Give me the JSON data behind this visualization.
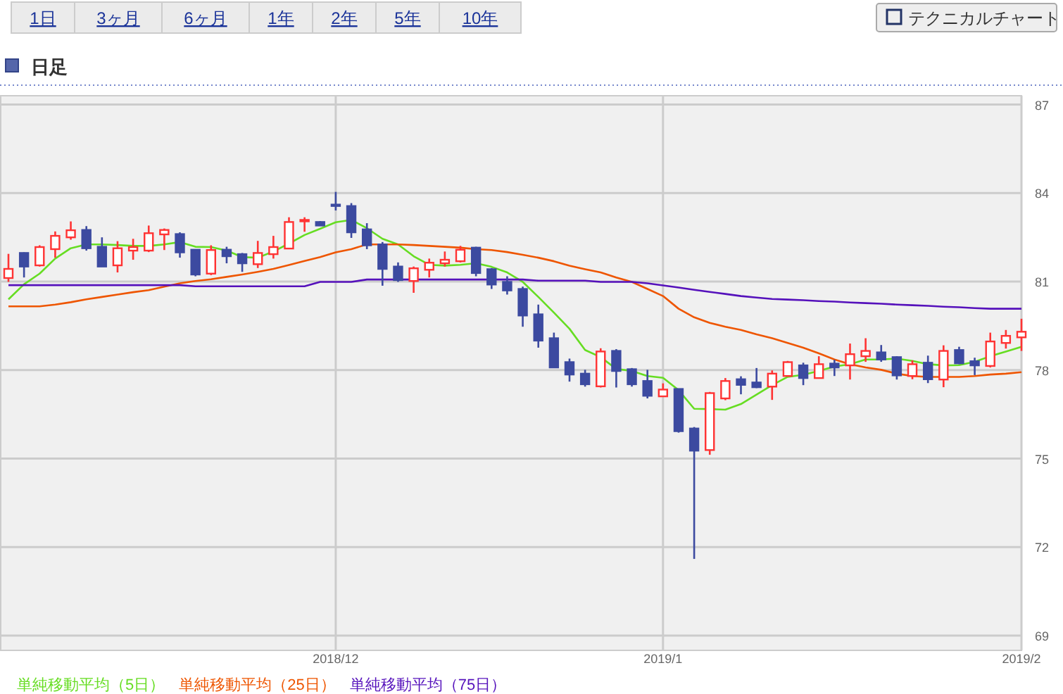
{
  "chart_data": {
    "type": "candlestick",
    "title": "日足",
    "annotations": [
      "1日",
      "3ヶ月",
      "6ヶ月",
      "1年",
      "2年",
      "5年",
      "10年",
      "テクニカルチャート"
    ],
    "categories": [
      null,
      null,
      null,
      null,
      null,
      null,
      null,
      null,
      null,
      null,
      null,
      null,
      null,
      null,
      null,
      null,
      null,
      null,
      null,
      null,
      null,
      "2018/12",
      null,
      null,
      null,
      null,
      null,
      null,
      null,
      null,
      null,
      null,
      null,
      null,
      null,
      null,
      null,
      null,
      null,
      null,
      null,
      null,
      "2019/1",
      null,
      null,
      null,
      null,
      null,
      null,
      null,
      null,
      null,
      null,
      null,
      null,
      null,
      null,
      null,
      null,
      null,
      null,
      null,
      null,
      null,
      null,
      "2019/2"
    ],
    "ohlc": [
      [
        81.12,
        81.94,
        80.99,
        81.43
      ],
      [
        81.97,
        81.99,
        81.14,
        81.51
      ],
      [
        81.55,
        82.23,
        81.51,
        82.17
      ],
      [
        82.1,
        82.7,
        81.81,
        82.55
      ],
      [
        82.5,
        83.04,
        82.42,
        82.74
      ],
      [
        82.75,
        82.88,
        82.05,
        82.13
      ],
      [
        82.18,
        82.5,
        81.51,
        81.51
      ],
      [
        81.55,
        82.37,
        81.31,
        82.13
      ],
      [
        82.05,
        82.45,
        81.74,
        82.17
      ],
      [
        82.05,
        82.9,
        82.0,
        82.64
      ],
      [
        82.6,
        82.8,
        82.07,
        82.75
      ],
      [
        82.61,
        82.67,
        81.81,
        81.99
      ],
      [
        82.08,
        82.08,
        81.18,
        81.24
      ],
      [
        81.27,
        82.23,
        81.22,
        82.07
      ],
      [
        82.08,
        82.18,
        81.62,
        81.86
      ],
      [
        81.93,
        81.97,
        81.33,
        81.62
      ],
      [
        81.59,
        82.38,
        81.46,
        81.97
      ],
      [
        81.93,
        82.55,
        81.78,
        82.17
      ],
      [
        82.12,
        83.18,
        82.12,
        83.02
      ],
      [
        83.05,
        83.18,
        82.69,
        83.09
      ],
      [
        83.02,
        83.05,
        82.9,
        82.9
      ],
      [
        83.61,
        84.04,
        83.41,
        83.61
      ],
      [
        83.56,
        83.66,
        82.48,
        82.67
      ],
      [
        82.77,
        82.98,
        82.1,
        82.23
      ],
      [
        82.26,
        82.34,
        80.86,
        81.43
      ],
      [
        81.51,
        81.65,
        80.99,
        81.05
      ],
      [
        81.02,
        81.51,
        80.62,
        81.45
      ],
      [
        81.4,
        81.78,
        81.14,
        81.64
      ],
      [
        81.62,
        82.02,
        81.51,
        81.74
      ],
      [
        81.69,
        82.21,
        81.65,
        82.08
      ],
      [
        82.15,
        82.18,
        81.18,
        81.29
      ],
      [
        81.42,
        81.46,
        80.75,
        80.9
      ],
      [
        80.99,
        81.18,
        80.56,
        80.7
      ],
      [
        80.75,
        80.83,
        79.47,
        79.85
      ],
      [
        79.89,
        80.22,
        78.76,
        79.0
      ],
      [
        79.08,
        79.27,
        78.09,
        78.09
      ],
      [
        78.27,
        78.39,
        77.61,
        77.85
      ],
      [
        77.88,
        78.01,
        77.44,
        77.52
      ],
      [
        77.45,
        78.74,
        77.41,
        78.63
      ],
      [
        78.65,
        78.71,
        77.41,
        77.97
      ],
      [
        78.03,
        78.07,
        77.44,
        77.52
      ],
      [
        77.63,
        78.01,
        77.04,
        77.13
      ],
      [
        77.11,
        77.55,
        77.11,
        77.34
      ],
      [
        77.36,
        77.36,
        75.88,
        75.93
      ],
      [
        76.02,
        76.07,
        71.6,
        75.27
      ],
      [
        75.29,
        77.26,
        75.13,
        77.22
      ],
      [
        77.04,
        77.73,
        76.98,
        77.63
      ],
      [
        77.69,
        77.79,
        77.18,
        77.5
      ],
      [
        77.58,
        78.07,
        77.39,
        77.42
      ],
      [
        77.44,
        77.99,
        76.99,
        77.88
      ],
      [
        77.8,
        78.31,
        77.8,
        78.27
      ],
      [
        78.16,
        78.25,
        77.49,
        77.73
      ],
      [
        77.73,
        78.47,
        77.73,
        78.2
      ],
      [
        78.22,
        78.35,
        77.8,
        78.09
      ],
      [
        78.16,
        78.9,
        77.68,
        78.54
      ],
      [
        78.47,
        79.08,
        78.28,
        78.65
      ],
      [
        78.6,
        78.85,
        78.28,
        78.36
      ],
      [
        78.44,
        78.47,
        77.68,
        77.82
      ],
      [
        77.8,
        78.33,
        77.69,
        78.2
      ],
      [
        78.25,
        78.49,
        77.56,
        77.69
      ],
      [
        77.68,
        78.84,
        77.42,
        78.65
      ],
      [
        78.68,
        78.79,
        78.2,
        78.23
      ],
      [
        78.3,
        78.42,
        77.83,
        78.16
      ],
      [
        78.14,
        79.27,
        78.09,
        78.97
      ],
      [
        78.92,
        79.36,
        78.73,
        79.16
      ],
      [
        79.11,
        79.74,
        78.65,
        79.3
      ]
    ],
    "colors": [
      "#ff3333",
      "#3c4aa0",
      "#ff3333",
      "#ff3333",
      "#ff3333",
      "#3c4aa0",
      "#3c4aa0",
      "#ff3333",
      "#ff3333",
      "#ff3333",
      "#ff3333",
      "#3c4aa0",
      "#3c4aa0",
      "#ff3333",
      "#3c4aa0",
      "#3c4aa0",
      "#ff3333",
      "#ff3333",
      "#ff3333",
      "#ff3333",
      "#3c4aa0",
      "#3c4aa0",
      "#3c4aa0",
      "#3c4aa0",
      "#3c4aa0",
      "#3c4aa0",
      "#ff3333",
      "#ff3333",
      "#ff3333",
      "#ff3333",
      "#3c4aa0",
      "#3c4aa0",
      "#3c4aa0",
      "#3c4aa0",
      "#3c4aa0",
      "#3c4aa0",
      "#3c4aa0",
      "#3c4aa0",
      "#ff3333",
      "#3c4aa0",
      "#3c4aa0",
      "#3c4aa0",
      "#ff3333",
      "#3c4aa0",
      "#3c4aa0",
      "#ff3333",
      "#ff3333",
      "#3c4aa0",
      "#3c4aa0",
      "#ff3333",
      "#ff3333",
      "#3c4aa0",
      "#ff3333",
      "#3c4aa0",
      "#ff3333",
      "#ff3333",
      "#3c4aa0",
      "#3c4aa0",
      "#ff3333",
      "#3c4aa0",
      "#ff3333",
      "#3c4aa0",
      "#3c4aa0",
      "#ff3333",
      "#ff3333",
      "#ff3333"
    ],
    "series": [
      {
        "name": "単純移動平均（5日）",
        "type": "line",
        "color": "#66dd22",
        "values": [
          80.4,
          80.91,
          81.27,
          81.78,
          82.13,
          82.26,
          82.26,
          82.24,
          82.21,
          82.21,
          82.26,
          82.34,
          82.18,
          82.17,
          82.05,
          81.83,
          81.81,
          82.02,
          82.29,
          82.58,
          82.79,
          83.01,
          83.09,
          82.81,
          82.45,
          82.26,
          81.86,
          81.57,
          81.54,
          81.57,
          81.62,
          81.5,
          81.31,
          80.99,
          80.48,
          79.95,
          79.4,
          78.68,
          78.44,
          78.04,
          77.97,
          77.8,
          77.74,
          77.32,
          76.69,
          76.68,
          76.66,
          76.85,
          77.17,
          77.49,
          77.77,
          77.84,
          77.97,
          78.12,
          78.2,
          78.36,
          78.36,
          78.39,
          78.31,
          78.2,
          78.16,
          78.17,
          78.28,
          78.47,
          78.63,
          78.79
        ]
      },
      {
        "name": "単純移動平均（25日）",
        "type": "line",
        "color": "#ee5500",
        "values": [
          80.16,
          80.16,
          80.16,
          80.22,
          80.3,
          80.4,
          80.48,
          80.56,
          80.64,
          80.71,
          80.83,
          80.94,
          81.02,
          81.08,
          81.16,
          81.24,
          81.33,
          81.43,
          81.56,
          81.7,
          81.83,
          81.99,
          82.1,
          82.26,
          82.26,
          82.26,
          82.24,
          82.21,
          82.18,
          82.15,
          82.1,
          82.07,
          82.0,
          81.91,
          81.81,
          81.69,
          81.54,
          81.42,
          81.31,
          81.14,
          80.99,
          80.75,
          80.51,
          80.08,
          79.79,
          79.6,
          79.47,
          79.36,
          79.21,
          79.08,
          78.92,
          78.76,
          78.57,
          78.36,
          78.2,
          78.09,
          78.01,
          77.88,
          77.8,
          77.77,
          77.77,
          77.77,
          77.8,
          77.85,
          77.88,
          77.93
        ]
      },
      {
        "name": "単純移動平均（75日）",
        "type": "line",
        "color": "#5511bb",
        "values": [
          80.88,
          80.88,
          80.88,
          80.88,
          80.88,
          80.88,
          80.88,
          80.88,
          80.88,
          80.88,
          80.88,
          80.88,
          80.84,
          80.84,
          80.84,
          80.84,
          80.84,
          80.84,
          80.84,
          80.84,
          80.99,
          80.99,
          80.99,
          81.07,
          81.07,
          81.07,
          81.07,
          81.07,
          81.07,
          81.07,
          81.07,
          81.07,
          81.07,
          81.07,
          81.03,
          81.03,
          81.03,
          81.03,
          80.99,
          80.99,
          80.99,
          80.94,
          80.87,
          80.8,
          80.72,
          80.65,
          80.58,
          80.51,
          80.46,
          80.41,
          80.39,
          80.37,
          80.34,
          80.32,
          80.29,
          80.27,
          80.25,
          80.22,
          80.2,
          80.18,
          80.15,
          80.13,
          80.1,
          80.08,
          80.08,
          80.08
        ]
      }
    ],
    "ylim": [
      68.5,
      87.3
    ],
    "yticks": [
      69,
      72,
      75,
      78,
      81,
      84,
      87
    ],
    "grid": true,
    "legend": "bottom"
  }
}
